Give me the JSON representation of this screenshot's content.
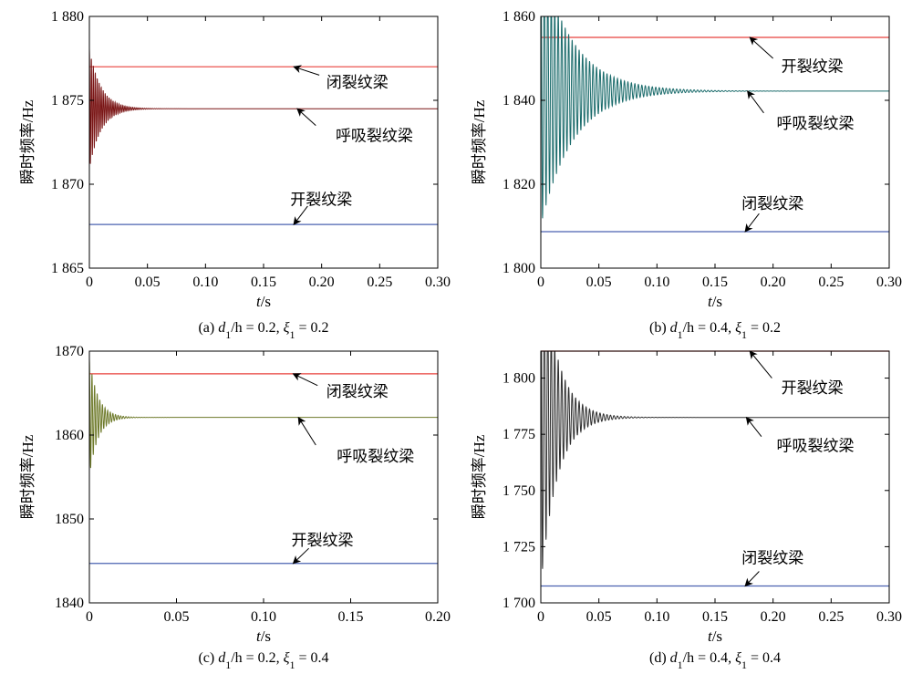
{
  "chart_data": [
    {
      "id": "a",
      "type": "line",
      "caption": {
        "prefix": "(a)",
        "d": "d",
        "d_sub": "1",
        "h_part": "/h = 0.2, ",
        "xi": "ξ",
        "xi_sub": "1",
        "xi_val": " = 0.2"
      },
      "xlabel": {
        "var": "t",
        "unit": "/s"
      },
      "ylabel": "瞬时频率/Hz",
      "xlim": [
        0,
        0.3
      ],
      "ylim": [
        1865,
        1880
      ],
      "xticks": [
        0,
        0.05,
        0.1,
        0.15,
        0.2,
        0.25,
        0.3
      ],
      "xtick_labels": [
        "0",
        "0.05",
        "0.10",
        "0.15",
        "0.20",
        "0.25",
        "0.30"
      ],
      "yticks": [
        1865,
        1870,
        1875,
        1880
      ],
      "ytick_labels": [
        "1 865",
        "1 870",
        "1 875",
        "1 880"
      ],
      "series": [
        {
          "kind": "constant",
          "value": 1877.0,
          "color": "#e8413c"
        },
        {
          "kind": "constant",
          "value": 1867.6,
          "color": "#4a62b0"
        },
        {
          "kind": "decay",
          "center": 1874.5,
          "initial_amp": 3.6,
          "decay_time": 0.01,
          "period": 0.0017,
          "color": "#7a1515"
        }
      ],
      "annotations": [
        {
          "text": "闭裂纹梁",
          "text_x": 0.204,
          "text_y": 1876.1,
          "arrow_from": [
            0.198,
            1876.5
          ],
          "arrow_to": [
            0.176,
            1877.0
          ]
        },
        {
          "text": "呼吸裂纹梁",
          "text_x": 0.212,
          "text_y": 1872.9,
          "arrow_from": [
            0.195,
            1873.5
          ],
          "arrow_to": [
            0.179,
            1874.5
          ]
        },
        {
          "text": "开裂纹梁",
          "text_x": 0.173,
          "text_y": 1869.1,
          "arrow_from": [
            0.188,
            1868.7
          ],
          "arrow_to": [
            0.176,
            1867.6
          ]
        }
      ]
    },
    {
      "id": "b",
      "type": "line",
      "caption": {
        "prefix": "(b)",
        "d": "d",
        "d_sub": "1",
        "h_part": "/h = 0.4, ",
        "xi": "ξ",
        "xi_sub": "1",
        "xi_val": " = 0.2"
      },
      "xlabel": {
        "var": "t",
        "unit": "/s"
      },
      "ylabel": "瞬时频率/Hz",
      "xlim": [
        0,
        0.3
      ],
      "ylim": [
        1800,
        1860
      ],
      "xticks": [
        0,
        0.05,
        0.1,
        0.15,
        0.2,
        0.25,
        0.3
      ],
      "xtick_labels": [
        "0",
        "0.05",
        "0.10",
        "0.15",
        "0.20",
        "0.25",
        "0.30"
      ],
      "yticks": [
        1800,
        1820,
        1840,
        1860
      ],
      "ytick_labels": [
        "1 800",
        "1 820",
        "1 840",
        "1 860"
      ],
      "series": [
        {
          "kind": "constant",
          "value": 1855.0,
          "color": "#e8413c"
        },
        {
          "kind": "constant",
          "value": 1808.7,
          "color": "#4a62b0"
        },
        {
          "kind": "decay",
          "center": 1842.2,
          "initial_amp": 32.0,
          "decay_time": 0.028,
          "period": 0.003,
          "color": "#1a6b6b"
        }
      ],
      "annotations": [
        {
          "text": "开裂纹梁",
          "text_x": 0.207,
          "text_y": 1848.1,
          "arrow_from": [
            0.2,
            1850.0
          ],
          "arrow_to": [
            0.18,
            1855.0
          ]
        },
        {
          "text": "呼吸裂纹梁",
          "text_x": 0.203,
          "text_y": 1834.6,
          "arrow_from": [
            0.192,
            1837.0
          ],
          "arrow_to": [
            0.178,
            1842.2
          ]
        },
        {
          "text": "闭裂纹梁",
          "text_x": 0.173,
          "text_y": 1815.4,
          "arrow_from": [
            0.188,
            1813.0
          ],
          "arrow_to": [
            0.176,
            1808.7
          ]
        }
      ]
    },
    {
      "id": "c",
      "type": "line",
      "caption": {
        "prefix": "(c)",
        "d": "d",
        "d_sub": "1",
        "h_part": "/h = 0.2, ",
        "xi": "ξ",
        "xi_sub": "1",
        "xi_val": " = 0.4"
      },
      "xlabel": {
        "var": "t",
        "unit": "/s"
      },
      "ylabel": "瞬时频率/Hz",
      "xlim": [
        0,
        0.2
      ],
      "ylim": [
        1840,
        1870
      ],
      "xticks": [
        0,
        0.05,
        0.1,
        0.15,
        0.2
      ],
      "xtick_labels": [
        "0",
        "0.05",
        "0.10",
        "0.15",
        "0.20"
      ],
      "yticks": [
        1840,
        1850,
        1860,
        1870
      ],
      "ytick_labels": [
        "1840",
        "1850",
        "1860",
        "1870"
      ],
      "series": [
        {
          "kind": "constant",
          "value": 1867.3,
          "color": "#e8413c"
        },
        {
          "kind": "constant",
          "value": 1844.7,
          "color": "#4a62b0"
        },
        {
          "kind": "decay",
          "center": 1862.1,
          "initial_amp": 7.0,
          "decay_time": 0.005,
          "period": 0.0015,
          "color": "#6e7a2a"
        }
      ],
      "annotations": [
        {
          "text": "闭裂纹梁",
          "text_x": 0.136,
          "text_y": 1865.2,
          "arrow_from": [
            0.131,
            1865.9
          ],
          "arrow_to": [
            0.117,
            1867.3
          ]
        },
        {
          "text": "呼吸裂纹梁",
          "text_x": 0.142,
          "text_y": 1857.5,
          "arrow_from": [
            0.13,
            1858.8
          ],
          "arrow_to": [
            0.12,
            1862.1
          ]
        },
        {
          "text": "开裂纹梁",
          "text_x": 0.116,
          "text_y": 1847.5,
          "arrow_from": [
            0.126,
            1846.5
          ],
          "arrow_to": [
            0.117,
            1844.7
          ]
        }
      ]
    },
    {
      "id": "d",
      "type": "line",
      "caption": {
        "prefix": "(d)",
        "d": "d",
        "d_sub": "1",
        "h_part": "/h = 0.4, ",
        "xi": "ξ",
        "xi_sub": "1",
        "xi_val": " = 0.4"
      },
      "xlabel": {
        "var": "t",
        "unit": "/s"
      },
      "ylabel": "瞬时频率/Hz",
      "xlim": [
        0,
        0.3
      ],
      "ylim": [
        1700,
        1812
      ],
      "xticks": [
        0,
        0.05,
        0.1,
        0.15,
        0.2,
        0.25,
        0.3
      ],
      "xtick_labels": [
        "0",
        "0.05",
        "0.10",
        "0.15",
        "0.20",
        "0.25",
        "0.30"
      ],
      "yticks": [
        1700,
        1725,
        1750,
        1775,
        1800
      ],
      "ytick_labels": [
        "1 700",
        "1 725",
        "1 750",
        "1 775",
        "1 800"
      ],
      "series": [
        {
          "kind": "constant",
          "value": 1812.0,
          "color": "#e8413c"
        },
        {
          "kind": "constant",
          "value": 1707.5,
          "color": "#4a62b0"
        },
        {
          "kind": "decay",
          "center": 1782.5,
          "initial_amp": 75.0,
          "decay_time": 0.014,
          "period": 0.003,
          "color": "#2e2e2e"
        }
      ],
      "annotations": [
        {
          "text": "开裂纹梁",
          "text_x": 0.207,
          "text_y": 1795.7,
          "arrow_from": [
            0.199,
            1800.0
          ],
          "arrow_to": [
            0.18,
            1812.0
          ]
        },
        {
          "text": "呼吸裂纹梁",
          "text_x": 0.203,
          "text_y": 1770.0,
          "arrow_from": [
            0.19,
            1774.0
          ],
          "arrow_to": [
            0.177,
            1782.5
          ]
        },
        {
          "text": "闭裂纹梁",
          "text_x": 0.173,
          "text_y": 1720.0,
          "arrow_from": [
            0.188,
            1714.0
          ],
          "arrow_to": [
            0.176,
            1707.5
          ]
        }
      ]
    }
  ]
}
